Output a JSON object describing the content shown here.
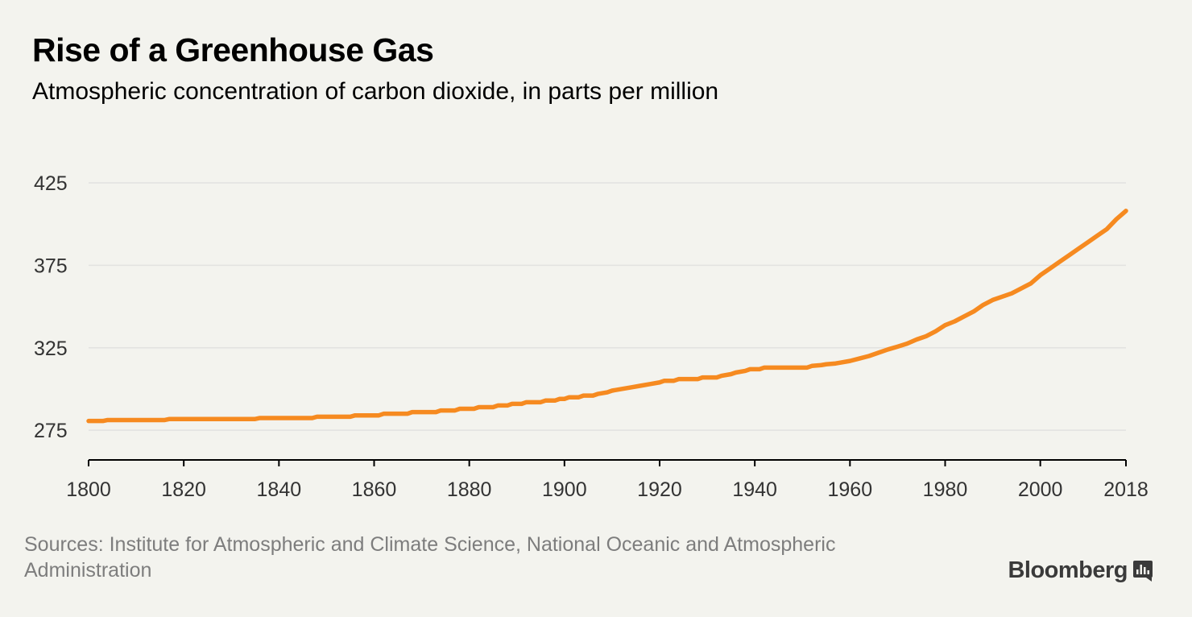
{
  "title": "Rise of a Greenhouse Gas",
  "subtitle": "Atmospheric concentration of carbon dioxide, in parts per million",
  "source": "Sources: Institute for Atmospheric and Climate Science, National Oceanic and Atmospheric Administration",
  "brand": "Bloomberg",
  "colors": {
    "line": "#f68a20",
    "grid": "#e2e2e0",
    "tick_text": "#333333",
    "axis": "#000000",
    "background": "#f3f3ee"
  },
  "chart_data": {
    "type": "line",
    "title": "Rise of a Greenhouse Gas",
    "subtitle": "Atmospheric concentration of carbon dioxide, in parts per million",
    "xlabel": "",
    "ylabel": "",
    "xlim": [
      1800,
      2018
    ],
    "ylim": [
      257,
      425
    ],
    "grid": true,
    "legend": "none",
    "x_ticks": [
      1800,
      1820,
      1840,
      1860,
      1880,
      1900,
      1920,
      1940,
      1960,
      1980,
      2000,
      2018
    ],
    "y_ticks": [
      275,
      325,
      375,
      425
    ],
    "series": [
      {
        "x": [
          1800,
          1803,
          1804,
          1816,
          1817,
          1835,
          1836,
          1847,
          1848,
          1855,
          1856,
          1861,
          1862,
          1867,
          1868,
          1873,
          1874,
          1877,
          1878,
          1881,
          1882,
          1885,
          1886,
          1888,
          1889,
          1891,
          1892,
          1895,
          1896,
          1898,
          1899,
          1900,
          1901,
          1903,
          1904,
          1906,
          1907,
          1909,
          1910,
          1912,
          1914,
          1916,
          1918,
          1920,
          1921,
          1923,
          1924,
          1928,
          1929,
          1932,
          1933,
          1935,
          1936,
          1938,
          1939,
          1941,
          1942,
          1944,
          1945,
          1951,
          1952,
          1954,
          1955,
          1957,
          1958,
          1960,
          1962,
          1964,
          1966,
          1968,
          1970,
          1972,
          1974,
          1976,
          1978,
          1980,
          1982,
          1984,
          1986,
          1988,
          1990,
          1992,
          1994,
          1996,
          1998,
          2000,
          2002,
          2004,
          2006,
          2008,
          2010,
          2012,
          2014,
          2016,
          2018
        ],
        "values": [
          280.6,
          280.6,
          281.2,
          281.2,
          281.8,
          281.8,
          282.4,
          282.4,
          283.2,
          283.2,
          284.0,
          284.0,
          285.0,
          285.0,
          286.0,
          286.0,
          287.0,
          287.0,
          288.0,
          288.0,
          289.0,
          289.0,
          290.0,
          290.0,
          291.0,
          291.0,
          292.0,
          292.0,
          293.0,
          293.0,
          294.0,
          294.0,
          295.0,
          295.0,
          296.0,
          296.0,
          297.0,
          298.0,
          299.0,
          300.0,
          301.0,
          302.0,
          303.0,
          304.0,
          305.0,
          305.0,
          306.0,
          306.0,
          307.0,
          307.0,
          308.0,
          309.0,
          310.0,
          311.0,
          312.0,
          312.0,
          313.0,
          313.0,
          313.0,
          313.0,
          314.0,
          314.5,
          315.0,
          315.5,
          316.0,
          317.0,
          318.5,
          320.0,
          322.0,
          324.0,
          325.7,
          327.5,
          330.0,
          332.0,
          335.0,
          338.7,
          341.0,
          344.0,
          347.0,
          351.0,
          354.0,
          356.0,
          358.0,
          361.0,
          364.0,
          369.0,
          373.0,
          377.0,
          381.0,
          385.0,
          389.0,
          393.0,
          397.0,
          403.0,
          408.0
        ]
      }
    ]
  }
}
